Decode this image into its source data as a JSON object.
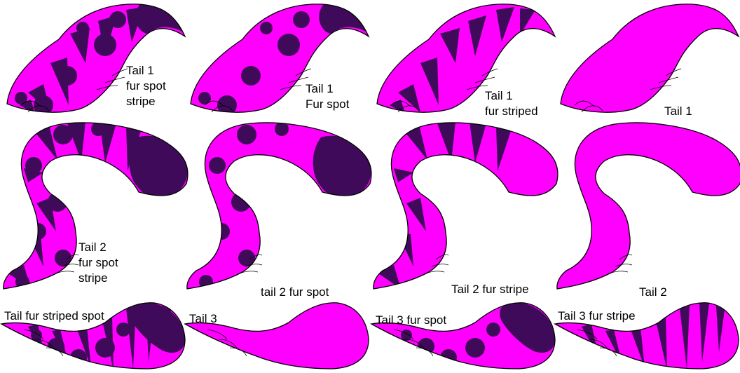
{
  "colors": {
    "base": "#ff00ff",
    "pattern": "#3f0a5a",
    "outline": "#000000",
    "background": "#ffffff"
  },
  "labels": {
    "t1_spot_stripe": "Tail 1\nfur spot\nstripe",
    "t1_spot": "Tail 1\nFur spot",
    "t1_striped": "Tail 1\nfur striped",
    "t1_plain": "Tail 1",
    "t2_spot_stripe": "Tail 2\nfur spot\nstripe",
    "t2_spot": "tail 2 fur spot",
    "t2_stripe": "Tail 2 fur stripe",
    "t2_plain": "Tail 2",
    "t3_striped_spot": "Tail fur striped spot",
    "t3_plain": "Tail 3",
    "t3_spot": "Tail 3 fur spot",
    "t3_stripe": "Tail 3 fur stripe"
  },
  "tails": [
    {
      "id": "t1-spot-stripe",
      "shape": "tail1",
      "pattern": "spot-stripe"
    },
    {
      "id": "t1-spot",
      "shape": "tail1",
      "pattern": "spot"
    },
    {
      "id": "t1-stripe",
      "shape": "tail1",
      "pattern": "stripe"
    },
    {
      "id": "t1-plain",
      "shape": "tail1",
      "pattern": "plain"
    },
    {
      "id": "t2-spot-stripe",
      "shape": "tail2",
      "pattern": "spot-stripe"
    },
    {
      "id": "t2-spot",
      "shape": "tail2",
      "pattern": "spot"
    },
    {
      "id": "t2-stripe",
      "shape": "tail2",
      "pattern": "stripe"
    },
    {
      "id": "t2-plain",
      "shape": "tail2",
      "pattern": "plain"
    },
    {
      "id": "t3-spot-stripe",
      "shape": "tail3",
      "pattern": "spot-stripe"
    },
    {
      "id": "t3-plain",
      "shape": "tail3",
      "pattern": "plain"
    },
    {
      "id": "t3-spot",
      "shape": "tail3",
      "pattern": "spot"
    },
    {
      "id": "t3-stripe",
      "shape": "tail3",
      "pattern": "stripe"
    }
  ]
}
